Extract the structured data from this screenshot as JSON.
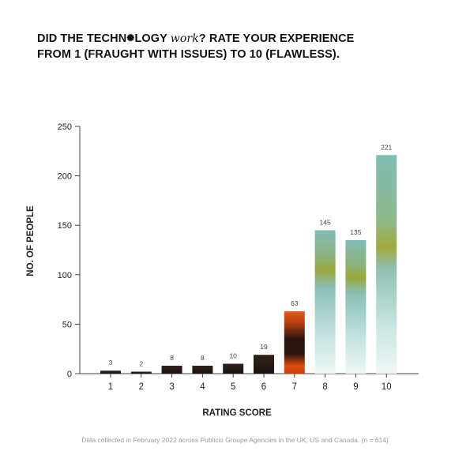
{
  "title": {
    "part1": "DID THE TECHN",
    "glyph": "✺",
    "part2": "LOGY ",
    "italic": "work",
    "part3": "? RATE YOUR EXPERIENCE",
    "line2": "FROM 1 (FRAUGHT WITH ISSUES) TO 10 (FLAWLESS)."
  },
  "footnote": "Data collected in February 2022 across Publicis Groupe Agencies in the UK, US and Canada. (n = 614)",
  "colors": {
    "low": "#2a1a16",
    "mid_orange": "#e0500e",
    "teal": "#7fbcb4",
    "olive": "#9aa83c",
    "axis": "#444444",
    "text": "#222222"
  },
  "chart_data": {
    "type": "bar",
    "categories": [
      "1",
      "2",
      "3",
      "4",
      "5",
      "6",
      "7",
      "8",
      "9",
      "10"
    ],
    "values": [
      3,
      2,
      8,
      8,
      10,
      19,
      63,
      145,
      135,
      221
    ],
    "xlabel": "RATING SCORE",
    "ylabel": "NO. OF PEOPLE",
    "ylim": [
      0,
      250
    ],
    "yticks": [
      0,
      50,
      100,
      150,
      200,
      250
    ],
    "grid": false,
    "legend": "none"
  }
}
